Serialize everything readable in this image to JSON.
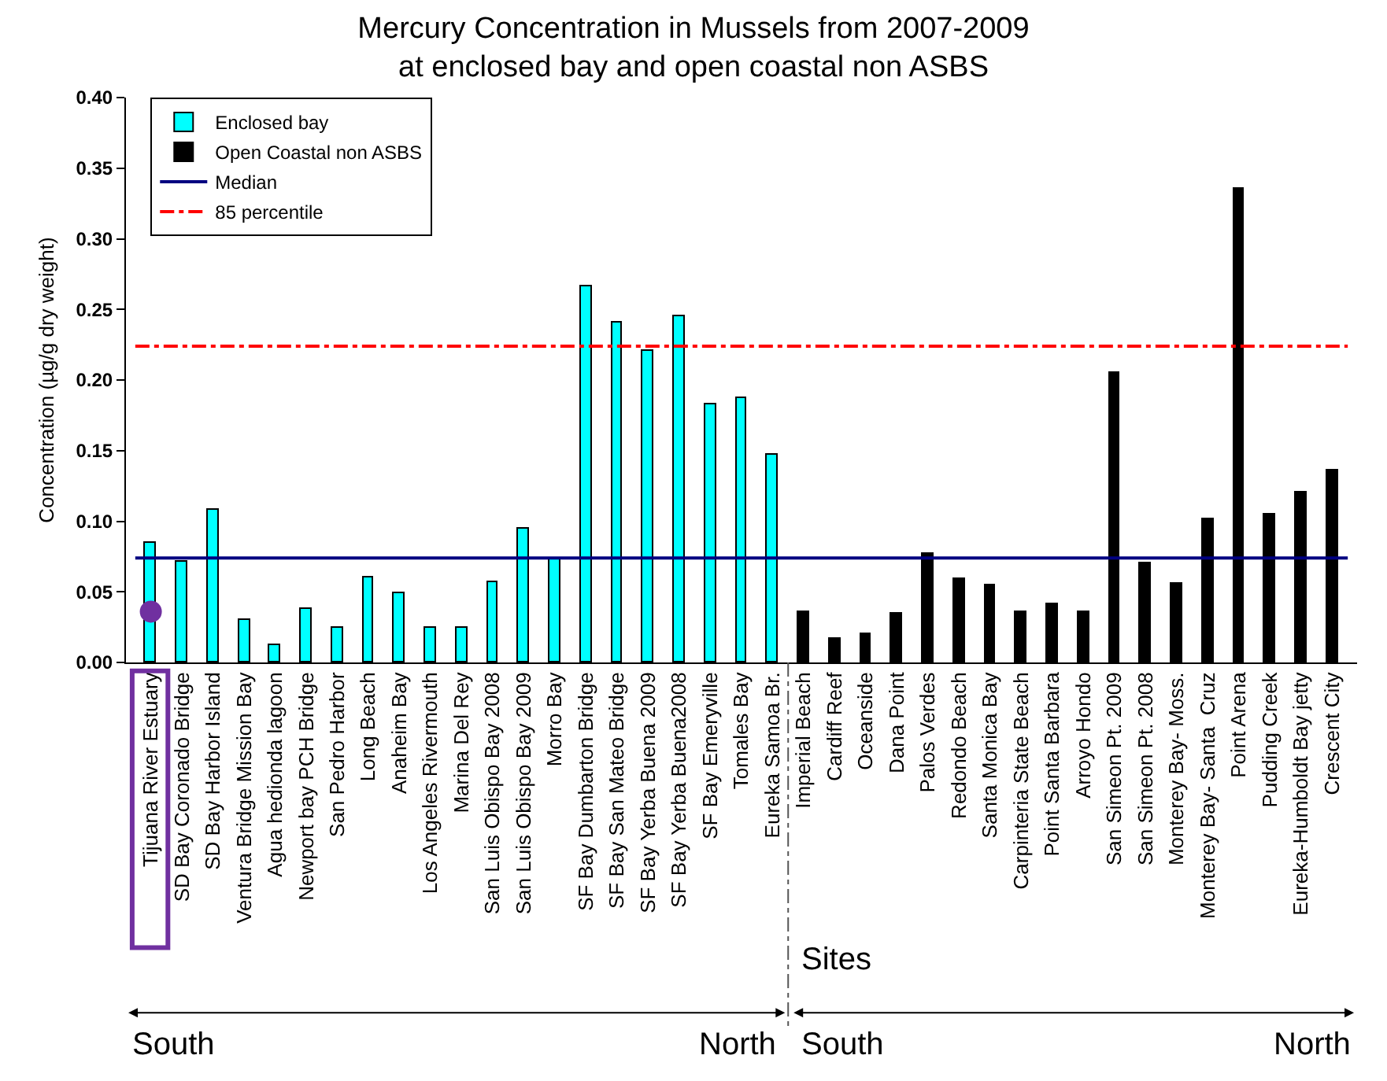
{
  "chart_data": {
    "type": "bar",
    "title": "Mercury Concentration in Mussels from 2007-2009\nat enclosed bay and open coastal non ASBS",
    "ylabel": "Concentration (µg/g dry weight)",
    "categories": [
      "Tijuana River Estuary",
      "SD Bay Coronado Bridge",
      "SD Bay Harbor Island",
      "Ventura Bridge Mission Bay",
      "Agua hedionda lagoon",
      "Newport bay PCH Bridge",
      "San Pedro Harbor",
      "Long Beach",
      "Anaheim Bay",
      "Los Angeles Rivermouth",
      "Marina Del Rey",
      "San Luis Obispo Bay 2008",
      "San Luis Obispo Bay 2009",
      "Morro Bay",
      "SF Bay Dumbarton Bridge",
      "SF Bay San Mateo Bridge",
      "SF Bay Yerba Buena 2009",
      "SF Bay Yerba Buena2008",
      "SF Bay Emeryville",
      "Tomales Bay",
      "Eureka Samoa Br.",
      "Imperial Beach",
      "Cardiff Reef",
      "Oceanside",
      "Dana Point",
      "Palos Verdes",
      "Redondo Beach",
      "Santa Monica Bay",
      "Carpinteria State Beach",
      "Point Santa Barbara",
      "Arroyo Hondo",
      "San Simeon Pt. 2009",
      "San Simeon Pt. 2008",
      "Monterey Bay- Moss.",
      "Monterey Bay- Santa  Cruz",
      "Point Arena",
      "Pudding Creek",
      "Eureka-Humboldt Bay jetty",
      "Crescent City"
    ],
    "series": [
      {
        "name": "Enclosed bay",
        "color": "#00ffff",
        "values": [
          0.085,
          0.071,
          0.108,
          0.03,
          0.012,
          0.038,
          0.024,
          0.06,
          0.049,
          0.024,
          0.025,
          0.057,
          0.095,
          0.074,
          0.266,
          0.241,
          0.221,
          0.245,
          0.183,
          0.187,
          0.147,
          null,
          null,
          null,
          null,
          null,
          null,
          null,
          null,
          null,
          null,
          null,
          null,
          null,
          null,
          null,
          null,
          null,
          null
        ]
      },
      {
        "name": "Open Coastal non ASBS",
        "color": "#000000",
        "values": [
          null,
          null,
          null,
          null,
          null,
          null,
          null,
          null,
          null,
          null,
          null,
          null,
          null,
          null,
          null,
          null,
          null,
          null,
          null,
          null,
          null,
          0.036,
          0.017,
          0.02,
          0.034,
          0.077,
          0.059,
          0.055,
          0.036,
          0.041,
          0.036,
          0.205,
          0.07,
          0.056,
          0.101,
          0.335,
          0.105,
          0.12,
          0.136
        ]
      },
      {
        "type": "scatter",
        "marker": "circle",
        "color": "#7030a0",
        "values": [
          0.036,
          null,
          null,
          null,
          null,
          null,
          null,
          null,
          null,
          null,
          null,
          null,
          null,
          null,
          null,
          null,
          null,
          null,
          null,
          null,
          null,
          null,
          null,
          null,
          null,
          null,
          null,
          null,
          null,
          null,
          null,
          null,
          null,
          null,
          null,
          null,
          null,
          null,
          null
        ]
      }
    ],
    "ref_lines": [
      {
        "axis": "y",
        "value": 0.074,
        "label": "Median",
        "color": "#000080",
        "line_style": "solid"
      },
      {
        "axis": "y",
        "value": 0.224,
        "label": "85 percentile",
        "color": "#ff0000",
        "line_style": "dashdot"
      }
    ],
    "ylim": [
      0,
      0.4
    ],
    "yticks": [
      {
        "value": 0,
        "label": "0.00"
      },
      0.05,
      {
        "value": 0.1,
        "label": "0.10"
      },
      0.15,
      {
        "value": 0.2,
        "label": "0.20"
      },
      0.25,
      {
        "value": 0.3,
        "label": "0.30"
      },
      0.35,
      {
        "value": 0.4,
        "label": "0.40"
      }
    ],
    "annotations": [
      "Sites",
      "South",
      "North",
      "South",
      "North"
    ],
    "grid": false,
    "legend": "top left"
  }
}
